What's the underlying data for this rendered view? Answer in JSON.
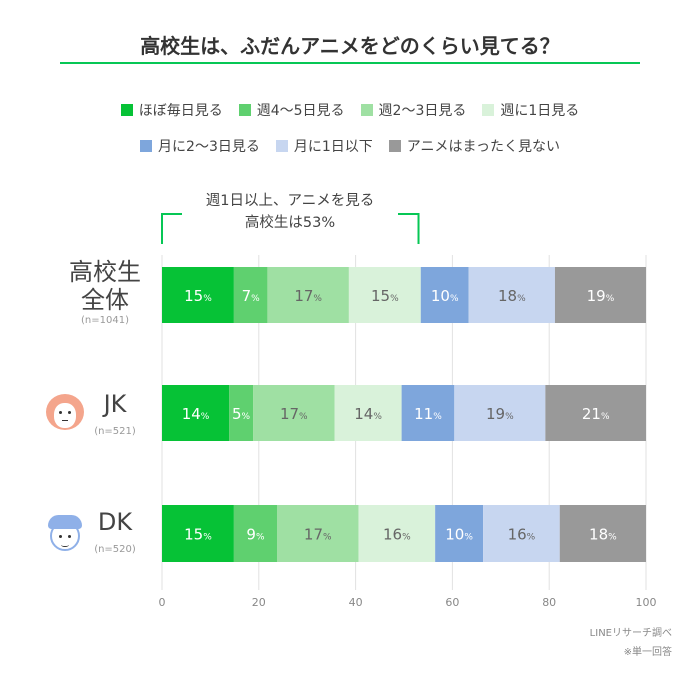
{
  "chart_data": {
    "type": "bar",
    "orientation": "horizontal-stacked",
    "title": "高校生は、ふだんアニメをどのくらい見てる？",
    "categories": [
      "高校生全体",
      "JK",
      "DK"
    ],
    "category_notes": [
      "(n=1041)",
      "(n=521)",
      "(n=520)"
    ],
    "series": [
      {
        "name": "ほぼ毎日見る",
        "color": "#06c236",
        "values": [
          15,
          14,
          15
        ]
      },
      {
        "name": "週4～5日見る",
        "color": "#5fd06f",
        "values": [
          7,
          5,
          9
        ]
      },
      {
        "name": "週2～3日見る",
        "color": "#9fe0a3",
        "values": [
          17,
          17,
          17
        ]
      },
      {
        "name": "週に1日見る",
        "color": "#d9f2da",
        "values": [
          15,
          14,
          16
        ]
      },
      {
        "name": "月に2～3日見る",
        "color": "#7ea6dc",
        "values": [
          10,
          11,
          10
        ]
      },
      {
        "name": "月に1日以下",
        "color": "#c7d6f0",
        "values": [
          18,
          19,
          16
        ]
      },
      {
        "name": "アニメはまったく見ない",
        "color": "#999999",
        "values": [
          19,
          21,
          18
        ]
      }
    ],
    "xlim": [
      0,
      100
    ],
    "xticks": [
      0,
      20,
      40,
      60,
      80,
      100
    ],
    "grid": true,
    "legend": "top",
    "value_suffix": "%",
    "annotation": {
      "line1": "週1日以上、アニメを見る",
      "line2": "高校生は53%",
      "value": 53
    }
  },
  "source": "LINEリサーチ調べ",
  "note": "※単一回答"
}
